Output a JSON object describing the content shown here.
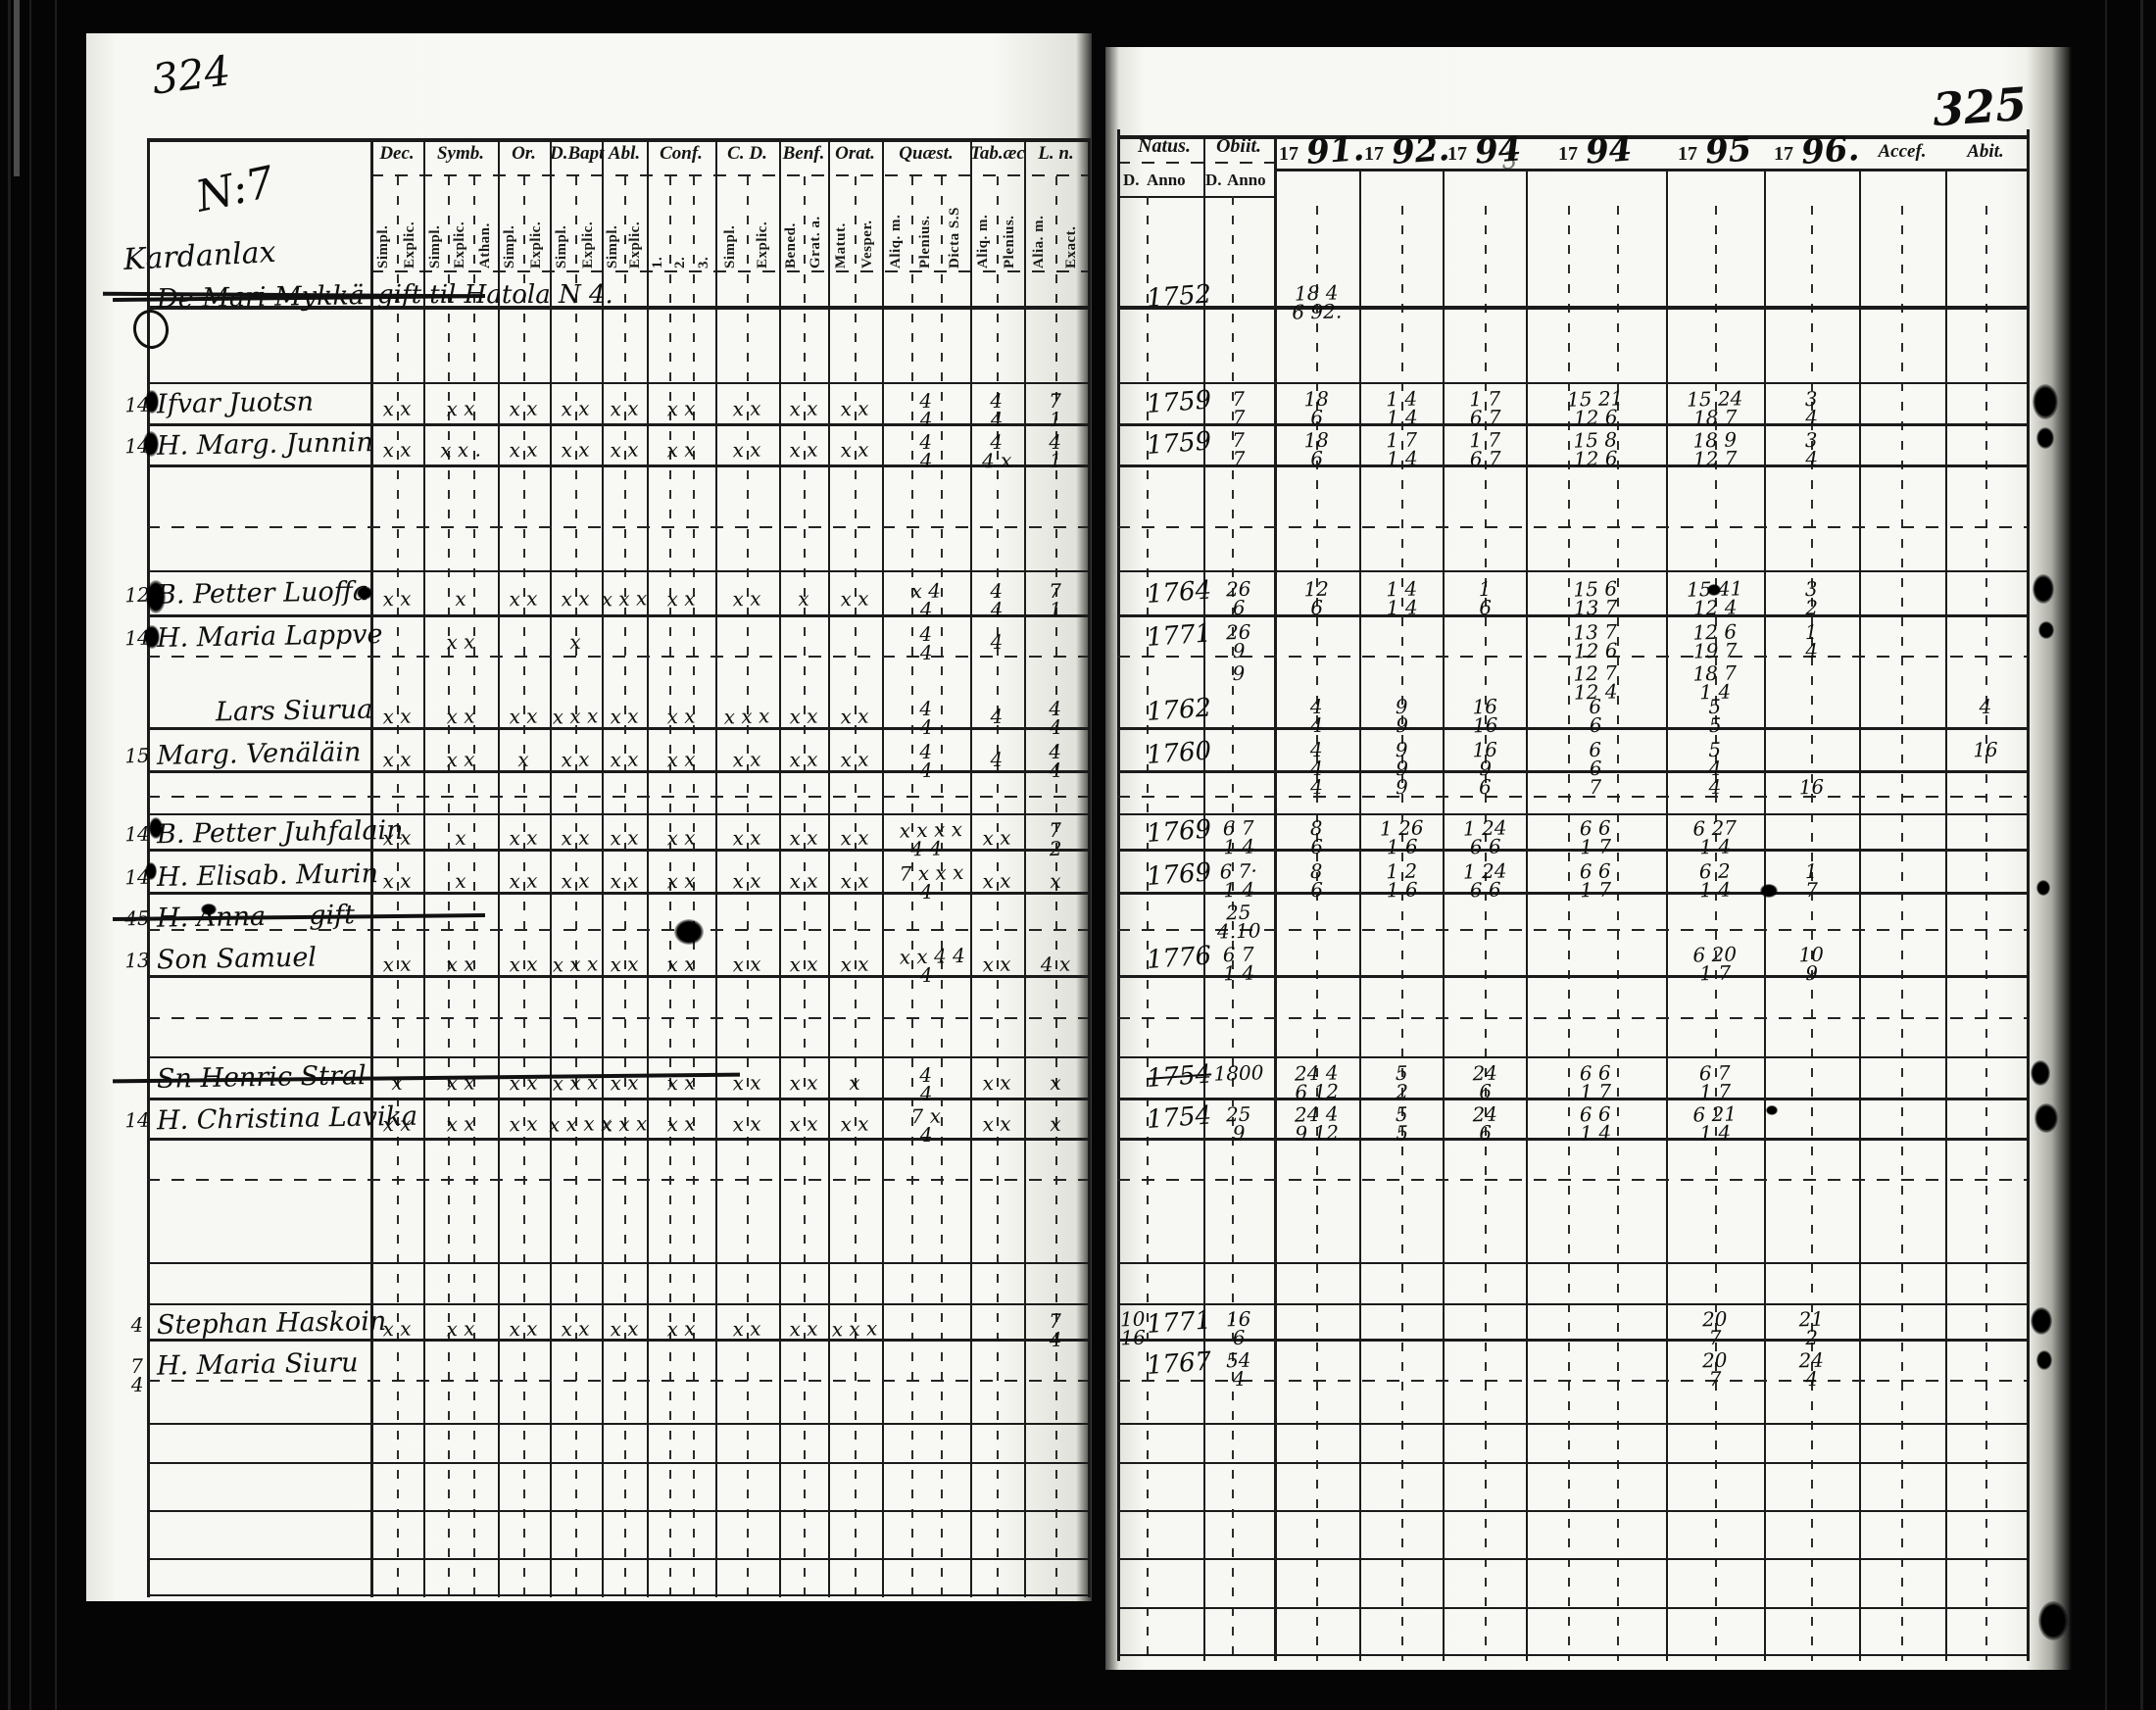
{
  "scan": {
    "left_page_number": "324",
    "right_page_number": "325"
  },
  "left_page": {
    "section_no": "N:7",
    "section_title": "Kardanlax",
    "header_groups": [
      {
        "label": "Dec.",
        "subs": [
          "Simpl.",
          "Explic."
        ]
      },
      {
        "label": "Symb.",
        "subs": [
          "Simpl.",
          "Explic.",
          "Athan."
        ]
      },
      {
        "label": "Or.",
        "subs": [
          "Simpl.",
          "Explic."
        ]
      },
      {
        "label": "D.Bapt",
        "subs": [
          "Simpl.",
          "Explic."
        ]
      },
      {
        "label": "Abl.",
        "subs": [
          "Simpl.",
          "Explic."
        ]
      },
      {
        "label": "Conf.",
        "subs": [
          "1.",
          "2.",
          "3."
        ]
      },
      {
        "label": "C. D.",
        "subs": [
          "Simpl.",
          "Explic."
        ]
      },
      {
        "label": "Benf.",
        "subs": [
          "Bened.",
          "Grat. a."
        ]
      },
      {
        "label": "Orat.",
        "subs": [
          "Matut.",
          "Vesper."
        ]
      },
      {
        "label": "Quæst.",
        "subs": [
          "Aliq. m.",
          "Plenius.",
          "Dicta S.S"
        ]
      },
      {
        "label": "Tab.æc",
        "subs": [
          "Aliq. m.",
          "Plenius."
        ]
      },
      {
        "label": "L. n.",
        "subs": [
          "Alia. m.",
          "Exact."
        ]
      }
    ]
  },
  "right_page": {
    "natus_label": "Natus.",
    "obiit_label": "Obiit.",
    "d_label": "D.",
    "anno_label": "Anno",
    "year_prefix": "17",
    "years": [
      "91.",
      "92.",
      "94",
      "94",
      "95",
      "96."
    ],
    "year_ghost_index": 2,
    "year_ghost": "3",
    "acces_label": "Accef.",
    "abit_label": "Abit."
  },
  "rows": [
    {
      "name": "De Mari Mykkä",
      "strike": true,
      "note": "gift til Hatola N 4.",
      "na": "1752",
      "y91": "18 4|6 92."
    },
    {
      "m": "14",
      "name": "Ifvar Juotsn",
      "lm": {
        "dec": "x x",
        "symb": "x x",
        "or": "x x",
        "dbapt": "x x",
        "abl": "x x",
        "conf": "x x",
        "cd": "x x",
        "benf": "x x",
        "orat": "x x",
        "quaest": "4|4",
        "tab": "4|4",
        "ln": "7|1"
      },
      "na": "1759",
      "ob": "7|7",
      "y91": "18|6",
      "y92": "1 4|1 4",
      "y93": "1 7|6 7",
      "y94": "15 21|12 6",
      "y95": "15 24|18 7",
      "y96": "3|4"
    },
    {
      "m": "14",
      "name": "H. Marg. Junnin",
      "lm": {
        "dec": "x x",
        "symb": "x x .",
        "or": "x x",
        "dbapt": "x x",
        "abl": "x x",
        "conf": "x x",
        "cd": "x x",
        "benf": "x x",
        "orat": "x x",
        "quaest": "4|4",
        "tab": "4|4 x",
        "ln": "4|1"
      },
      "na": "1759",
      "ob": "7|7",
      "y91": "18|6",
      "y92": "1 7|1 4",
      "y93": "1 7|6 7",
      "y94": "15 8|12 6",
      "y95": "18 9|12 7",
      "y96": "3|4"
    },
    {
      "m": "12",
      "name": "B. Petter Luoffa",
      "lm": {
        "dec": "x x",
        "symb": "x",
        "or": "x x",
        "dbapt": "x x",
        "abl": "x x x",
        "conf": "x x",
        "cd": "x x",
        "benf": "x",
        "orat": "x x",
        "quaest": "x 4|4",
        "tab": "4|4",
        "ln": "7|1"
      },
      "na": "1764",
      "ob": "26|6",
      "y91": "12|6",
      "y92": "1 4|1 4",
      "y93": "1|6",
      "y94": "15 6|13 7",
      "y95": "15 41|12 4",
      "y96": "3|2"
    },
    {
      "m": "14",
      "name": "H. Maria Lappve",
      "lm": {
        "symb": "x x",
        "dbapt": "x",
        "quaest": "4|4",
        "tab": "4"
      },
      "na": "1771",
      "ob": "26|9",
      "y94": "13 7|12 6",
      "y95": "12 6|19 7",
      "y96": "1|4"
    },
    {
      "ob": "9",
      "y94": "12 7|12 4",
      "y95": "18 7|1 4"
    },
    {
      "name": "Lars Siurua",
      "indent": 60,
      "lm": {
        "dec": "x x",
        "symb": "x x",
        "or": "x x",
        "dbapt": "x x x",
        "abl": "x x",
        "conf": "x x",
        "cd": "x x x",
        "benf": "x x",
        "orat": "x x",
        "quaest": "4|4",
        "tab": "4",
        "ln": "4|4"
      },
      "na": "1762",
      "y91": "4|4",
      "y92": "9|9",
      "y93": "16|16",
      "y94": "6|6",
      "y95": "5|5",
      "ab": "4"
    },
    {
      "m": "15",
      "name": "Marg. Venäläin",
      "lm": {
        "dec": "x x",
        "symb": "x x",
        "or": "x",
        "dbapt": "x x",
        "abl": "x x",
        "conf": "x x",
        "cd": "x x",
        "benf": "x x",
        "orat": "x x",
        "quaest": "4|4",
        "tab": "4",
        "ln": "4|4"
      },
      "na": "1760",
      "y91": "4|4",
      "y92": "9|9",
      "y93": "16|9",
      "y94": "6|6",
      "y95": "5|4",
      "ab": "16"
    },
    {
      "y91": "4",
      "y92": "9",
      "y93": "6",
      "y94": "7",
      "y95": "4",
      "y96": "16"
    },
    {
      "m": "14",
      "name": "B. Petter Juhfalain",
      "lm": {
        "dec": "x x",
        "symb": "x",
        "or": "x x",
        "dbapt": "x x",
        "abl": "x x",
        "conf": "x x",
        "cd": "x x",
        "benf": "x x",
        "orat": "x x",
        "quaest": "x x x x|4 4",
        "tab": "x x",
        "ln": "7|2"
      },
      "na": "1769",
      "ob": "6 7|1 4",
      "y91": "8|6",
      "y92": "1 26|1 6",
      "y93": "1 24|6 6",
      "y94": "6 6|1 7",
      "y95": "6 27|1 4"
    },
    {
      "m": "14",
      "name": "H. Elisab. Murin",
      "lm": {
        "dec": "x x",
        "symb": "x",
        "or": "x x",
        "dbapt": "x x",
        "abl": "x x",
        "conf": "x x",
        "cd": "x x",
        "benf": "x x",
        "orat": "x x",
        "quaest": "7 x x x|4",
        "tab": "x x",
        "ln": "x"
      },
      "na": "1769",
      "ob": "6 7·|1 4",
      "y91": "8|6",
      "y92": "1 2|1 6",
      "y93": "1 24|6 6",
      "y94": "6 6|1 7",
      "y95": "6 2|1 4",
      "y96": "1|7"
    },
    {
      "m": "45",
      "name": "H. Anna — gift",
      "strike": true,
      "ob": "25|4.10"
    },
    {
      "m": "13",
      "name": "Son Samuel",
      "lm": {
        "dec": "x x",
        "symb": "x x",
        "or": "x x",
        "dbapt": "x x x",
        "abl": "x x",
        "conf": "x x",
        "cd": "x x",
        "benf": "x x",
        "orat": "x x",
        "quaest": "x x 4 4|4",
        "tab": "x x",
        "ln": "4 x"
      },
      "na": "1776",
      "ob": "6 7|1 4",
      "y95": "6 20|1 7",
      "y96": "10|9"
    },
    {
      "name": "Sn Henric Stral",
      "strike": true,
      "strike_wide": true,
      "lm": {
        "dec": "x",
        "symb": "x x",
        "or": "x x",
        "dbapt": "x x x",
        "abl": "x x",
        "conf": "x x",
        "cd": "x x",
        "benf": "x x",
        "orat": "x",
        "quaest": "4|4",
        "tab": "x x",
        "ln": "x"
      },
      "na": "1754",
      "na_strike": true,
      "ob": "1800",
      "y91": "24 4|6 12",
      "y92": "5|2",
      "y93": "24|6",
      "y94": "6 6|1 7",
      "y95": "6 7|1 7"
    },
    {
      "m": "14",
      "name": "H. Christina Lavika",
      "lm": {
        "dec": "x x",
        "symb": "x x",
        "or": "x x",
        "dbapt": "x x x x",
        "abl": "x x x",
        "conf": "x x",
        "cd": "x x",
        "benf": "x x",
        "orat": "x x",
        "quaest": "7 x|4",
        "tab": "x x",
        "ln": "x"
      },
      "na": "1754",
      "ob": "25|9",
      "y91": "24 4|9 12",
      "y92": "5|5",
      "y93": "24|6",
      "y94": "6 6|1 4",
      "y95": "6 21|1 4"
    },
    {
      "m": "4",
      "name": "Stephan Haskoin",
      "lm": {
        "dec": "x x",
        "symb": "x x",
        "or": "x x",
        "dbapt": "x x",
        "abl": "x x",
        "conf": "x x",
        "cd": "x x",
        "benf": "x x",
        "orat": "x x x",
        "ln": "7|4"
      },
      "nd": "10|16",
      "na": "1771",
      "ob": "16|6",
      "y95": "20|7",
      "y96": "21|2"
    },
    {
      "m": "7|4",
      "name": "H. Maria Siuru",
      "na": "1767",
      "ob": "54|4",
      "y95": "20|7",
      "y96": "24|4"
    }
  ]
}
